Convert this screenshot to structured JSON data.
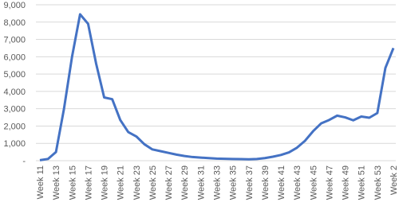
{
  "chart_data": {
    "type": "line",
    "categories": [
      "Week 11",
      null,
      "Week 13",
      null,
      "Week 15",
      null,
      "Week 17",
      null,
      "Week 19",
      null,
      "Week 21",
      null,
      "Week 23",
      null,
      "Week 25",
      null,
      "Week 27",
      null,
      "Week 29",
      null,
      "Week 31",
      null,
      "Week 33",
      null,
      "Week 35",
      null,
      "Week 37",
      null,
      "Week 39",
      null,
      "Week 41",
      null,
      "Week 43",
      null,
      "Week 45",
      null,
      "Week 47",
      null,
      "Week 49",
      null,
      "Week 51",
      null,
      "Week 53",
      null,
      "Week 2"
    ],
    "series": [
      {
        "color": "#4472c4",
        "values": [
          30,
          100,
          500,
          3000,
          6000,
          8450,
          7900,
          5600,
          3650,
          3550,
          2350,
          1650,
          1400,
          950,
          650,
          550,
          450,
          350,
          270,
          210,
          180,
          150,
          120,
          110,
          100,
          90,
          80,
          100,
          150,
          230,
          330,
          480,
          750,
          1150,
          1700,
          2150,
          2350,
          2600,
          2500,
          2330,
          2550,
          2480,
          2750,
          5350,
          6500
        ]
      }
    ],
    "ylim": [
      0,
      9000
    ],
    "yticks": [
      {
        "value": 0,
        "label": "-"
      },
      {
        "value": 1000,
        "label": "1,000"
      },
      {
        "value": 2000,
        "label": "2,000"
      },
      {
        "value": 3000,
        "label": "3,000"
      },
      {
        "value": 4000,
        "label": "4,000"
      },
      {
        "value": 5000,
        "label": "5,000"
      },
      {
        "value": 6000,
        "label": "6,000"
      },
      {
        "value": 7000,
        "label": "7,000"
      },
      {
        "value": 8000,
        "label": "8,000"
      },
      {
        "value": 9000,
        "label": "9,000"
      }
    ],
    "grid": true
  }
}
